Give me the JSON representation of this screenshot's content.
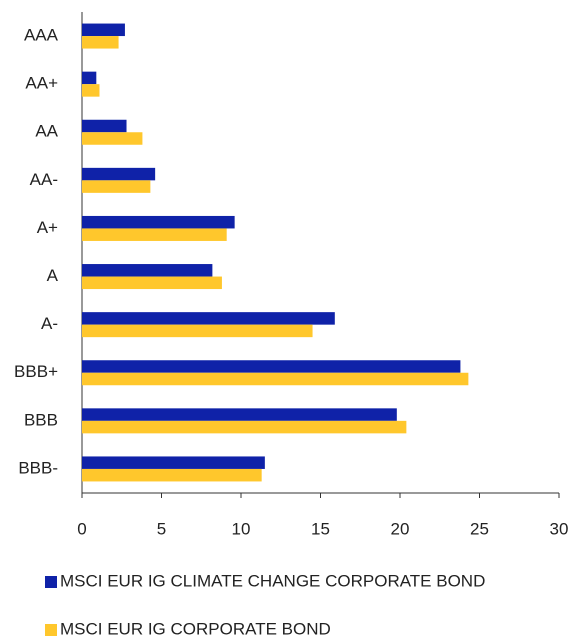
{
  "chart_data": {
    "type": "hbar",
    "categories": [
      "AAA",
      "AA+",
      "AA",
      "AA-",
      "A+",
      "A",
      "A-",
      "BBB+",
      "BBB",
      "BBB-"
    ],
    "series": [
      {
        "name": "MSCI EUR IG CLIMATE CHANGE CORPORATE BOND",
        "color": "#0f22a8",
        "values": [
          2.7,
          0.9,
          2.8,
          4.6,
          9.6,
          8.2,
          15.9,
          23.8,
          19.8,
          11.5
        ]
      },
      {
        "name": "MSCI EUR IG CORPORATE BOND",
        "color": "#ffc72c",
        "values": [
          2.3,
          1.1,
          3.8,
          4.3,
          9.1,
          8.8,
          14.5,
          24.3,
          20.4,
          11.3
        ]
      }
    ],
    "xlim": [
      0,
      30
    ],
    "xticks": [
      0,
      5,
      10,
      15,
      20,
      25,
      30
    ],
    "grid": false
  }
}
